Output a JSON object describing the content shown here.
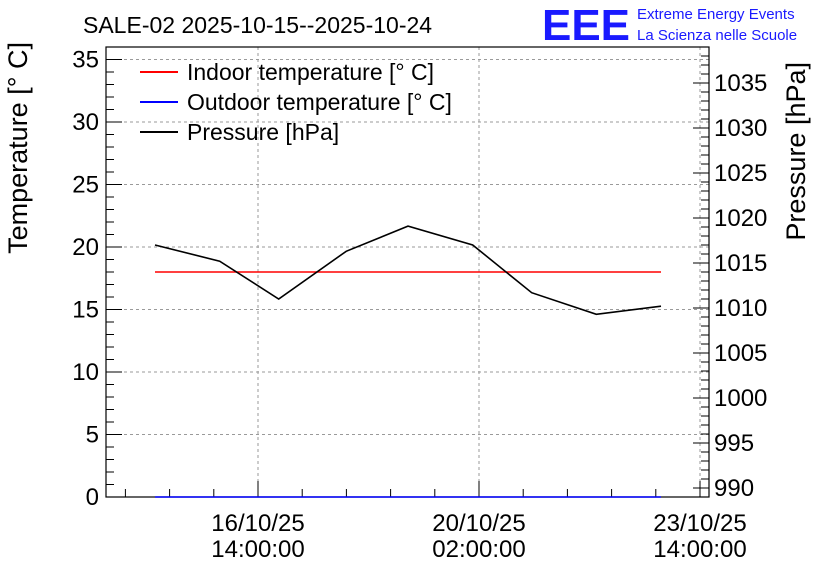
{
  "header": {
    "title": "SALE-02 2025-10-15--2025-10-24",
    "logo_text": "EEE",
    "logo_line1": "Extreme Energy Events",
    "logo_line2": "La Scienza nelle Scuole",
    "logo_color": "#1a1aff"
  },
  "chart_data": {
    "type": "line",
    "title": "SALE-02 2025-10-15--2025-10-24",
    "ylabel": "Temperature [° C]",
    "y2label": "Pressure [hPa]",
    "ylim": [
      0,
      36
    ],
    "y2lim": [
      989,
      1039
    ],
    "yticks": [
      "0",
      "5",
      "10",
      "15",
      "20",
      "25",
      "30",
      "35"
    ],
    "y2ticks": [
      "990",
      "995",
      "1000",
      "1005",
      "1010",
      "1015",
      "1020",
      "1025",
      "1030",
      "1035"
    ],
    "x_tick_labels": [
      {
        "date": "16/10/25",
        "time": "14:00:00"
      },
      {
        "date": "20/10/25",
        "time": "02:00:00"
      },
      {
        "date": "23/10/25",
        "time": "14:00:00"
      }
    ],
    "legend": {
      "position": "top-left"
    },
    "grid": true,
    "series": [
      {
        "name": "Indoor temperature [° C]",
        "axis": "left",
        "color": "#ff0000",
        "x": [
          0,
          9
        ],
        "values": [
          18,
          18
        ]
      },
      {
        "name": "Outdoor temperature [° C]",
        "axis": "left",
        "color": "#0000ff",
        "x": [
          0,
          9
        ],
        "values": [
          0,
          0
        ]
      },
      {
        "name": "Pressure [hPa]",
        "axis": "right",
        "color": "#000000",
        "x": [
          0,
          1.15,
          2.2,
          3.4,
          4.5,
          5.65,
          6.7,
          7.85,
          9
        ],
        "values": [
          1017,
          1015.2,
          1011,
          1016.3,
          1019.1,
          1017,
          1011.7,
          1009.3,
          1010.2
        ]
      }
    ]
  }
}
